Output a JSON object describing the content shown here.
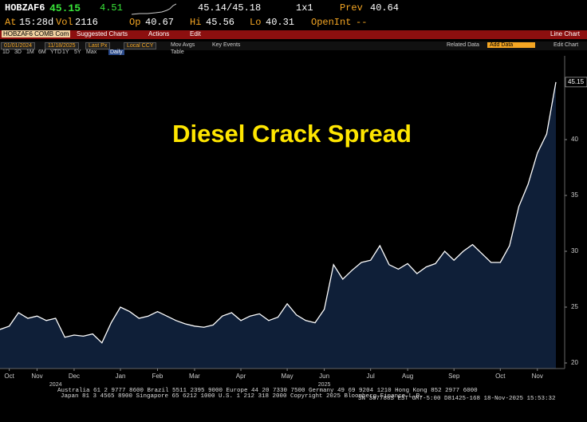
{
  "header": {
    "ticker": "HOBZAF6",
    "last": "45.15",
    "change": "4.51",
    "bidask": "45.14/45.18",
    "size": "1x1",
    "prev_label": "Prev",
    "prev": "40.64",
    "time_label": "At",
    "time": "15:28d",
    "vol_label": "Vol",
    "vol": "2116",
    "open_label": "Op",
    "open": "40.67",
    "high_label": "Hi",
    "high": "45.56",
    "low_label": "Lo",
    "low": "40.31",
    "oi_label": "OpenInt",
    "oi": "--"
  },
  "toolbar": {
    "security": "HOBZAF6 COMB Com",
    "suggested": "Suggested Charts",
    "actions": "Actions",
    "edit": "Edit",
    "view": "Line Chart"
  },
  "toolbar2": {
    "from": "01/01/2024",
    "to": "11/18/2025",
    "field": "Last Px",
    "currency": "Local CCY",
    "periods": [
      "1D",
      "3D",
      "1M",
      "6M",
      "YTD",
      "1Y",
      "5Y",
      "Max"
    ],
    "freq": "Daily",
    "mov_avgs": "Mov Avgs",
    "key_events": "Key Events",
    "table": "Table",
    "related": "Related Data",
    "add_data": "Add Data",
    "edit_chart": "Edit Chart"
  },
  "chart_data": {
    "type": "area",
    "title": "Diesel Crack Spread",
    "categories": [
      null,
      "Oct",
      null,
      null,
      "Nov",
      null,
      null,
      null,
      "Dec",
      null,
      null,
      null,
      null,
      "Jan",
      null,
      null,
      null,
      "Feb",
      null,
      null,
      null,
      "Mar",
      null,
      null,
      null,
      null,
      "Apr",
      null,
      null,
      null,
      null,
      "May",
      null,
      null,
      null,
      "Jun",
      null,
      null,
      null,
      null,
      "Jul",
      null,
      null,
      null,
      "Aug",
      null,
      null,
      null,
      null,
      "Sep",
      null,
      null,
      null,
      null,
      "Oct",
      null,
      null,
      null,
      "Nov",
      null,
      null
    ],
    "values": [
      23.0,
      23.3,
      24.5,
      24.0,
      24.2,
      23.8,
      24.0,
      22.3,
      22.5,
      22.4,
      22.6,
      21.8,
      23.6,
      25.0,
      24.6,
      24.0,
      24.2,
      24.6,
      24.2,
      23.8,
      23.5,
      23.3,
      23.2,
      23.4,
      24.2,
      24.5,
      23.8,
      24.2,
      24.4,
      23.8,
      24.1,
      25.3,
      24.3,
      23.8,
      23.6,
      24.8,
      28.8,
      27.5,
      28.3,
      29.0,
      29.2,
      30.5,
      28.8,
      28.4,
      28.9,
      28.0,
      28.6,
      28.9,
      30.0,
      29.2,
      30.0,
      30.6,
      29.8,
      29.0,
      29.0,
      30.5,
      34.0,
      36.0,
      38.8,
      40.5,
      45.15
    ],
    "years": [
      "2024",
      "2025"
    ],
    "color": "#0f1f38",
    "line_color": "#ffffff",
    "title_color": "#ffe600",
    "ylim": [
      19.5,
      47.5
    ],
    "yticks": [
      20,
      25,
      30,
      35,
      40
    ],
    "grid": false
  },
  "footer": {
    "line1": "Australia 61 2 9777 8600 Brazil 5511 2395 9000 Europe 44 20 7330 7500 Germany 49 69 9204 1210 Hong Kong 852 2977 6000",
    "line2": "Japan 81 3 4565 8900      Singapore 65 6212 1000      U.S. 1 212 318 2000      Copyright 2025 Bloomberg Finance L.P.",
    "line3": "SN 387788S EST  GMT-5:00 D81425-168 18-Nov-2025 15:53:32"
  }
}
